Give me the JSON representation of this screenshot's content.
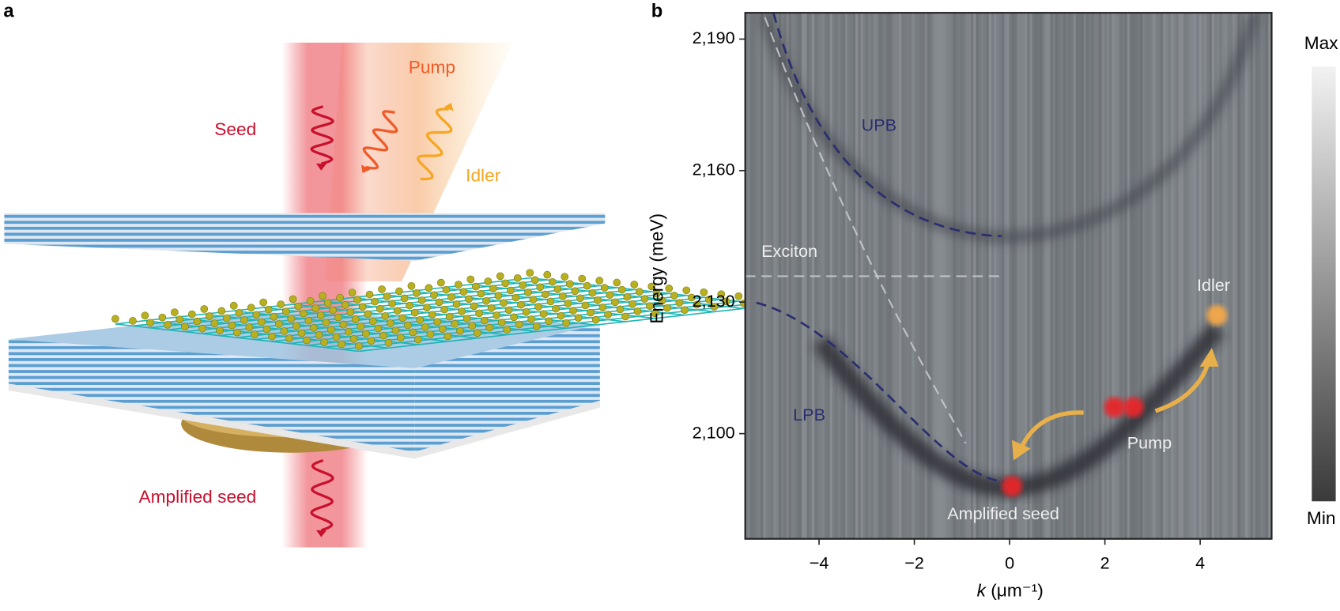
{
  "panel_a": {
    "label": "a",
    "seed": "Seed",
    "pump": "Pump",
    "idler": "Idler",
    "amplified_seed": "Amplified seed"
  },
  "chart_data": {
    "type": "heatmap",
    "panel_label": "b",
    "x_label": {
      "symbol": "k",
      "unit": " (μm⁻¹)"
    },
    "y_label": "Energy (meV)",
    "xlim": [
      -5.55,
      5.5
    ],
    "ylim": [
      2076,
      2196
    ],
    "xticks": [
      {
        "value": -4,
        "label": "−4"
      },
      {
        "value": -2,
        "label": "−2"
      },
      0,
      2,
      4
    ],
    "yticks": [
      {
        "value": 2100,
        "label": "2,100"
      },
      {
        "value": 2130,
        "label": "2,130"
      },
      {
        "value": 2160,
        "label": "2,160"
      },
      {
        "value": 2190,
        "label": "2,190"
      }
    ],
    "annotations": {
      "upb": "UPB",
      "exciton": "Exciton",
      "lpb": "LPB",
      "idler": "Idler",
      "pump": "Pump",
      "amplified_seed": "Amplified seed"
    },
    "markers": {
      "x": [
        0.05,
        2.2,
        2.6,
        4.35
      ],
      "y": [
        2088,
        2106,
        2106,
        2127
      ],
      "colors": [
        "#e8262a",
        "#e8262a",
        "#e8262a",
        "#f5a84a"
      ]
    },
    "colorbar": {
      "max": "Max",
      "min": "Min"
    }
  }
}
